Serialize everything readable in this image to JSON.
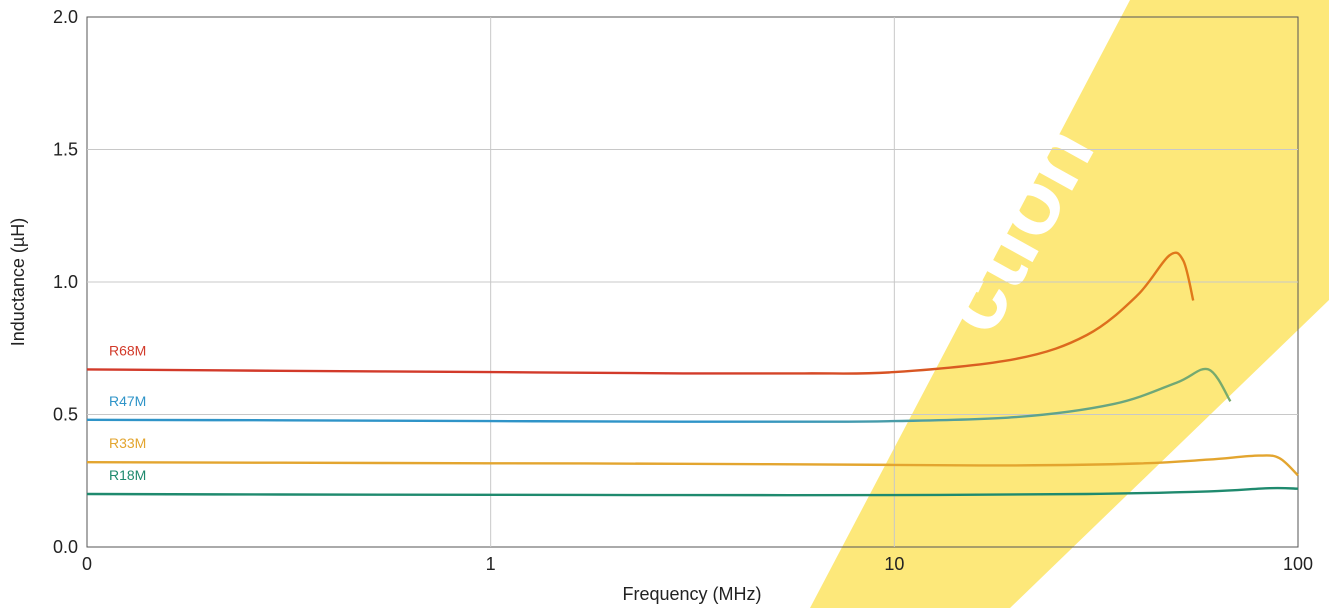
{
  "chart_data": {
    "type": "line",
    "xlabel": "Frequency (MHz)",
    "ylabel": "Inductance (µH)",
    "x_scale": "log",
    "xlim": [
      0.1,
      100
    ],
    "ylim": [
      0,
      2.0
    ],
    "x_ticks": [
      {
        "value": 0.1,
        "label": "0"
      },
      {
        "value": 1,
        "label": "1"
      },
      {
        "value": 10,
        "label": "10"
      },
      {
        "value": 100,
        "label": "100"
      }
    ],
    "y_ticks": [
      {
        "value": 0,
        "label": "0.0"
      },
      {
        "value": 0.5,
        "label": "0.5"
      },
      {
        "value": 1.0,
        "label": "1.0"
      },
      {
        "value": 1.5,
        "label": "1.5"
      },
      {
        "value": 2.0,
        "label": "2.0"
      }
    ],
    "grid": true,
    "legend": "inline labels near left end of each curve",
    "series": [
      {
        "name": "R68M",
        "color": "#d23a2a",
        "end_color": "#e07a1a",
        "x": [
          0.1,
          0.3,
          1,
          3,
          6,
          10,
          20,
          30,
          40,
          48,
          52,
          55
        ],
        "y": [
          0.67,
          0.665,
          0.66,
          0.655,
          0.655,
          0.66,
          0.71,
          0.8,
          0.95,
          1.1,
          1.08,
          0.93
        ]
      },
      {
        "name": "R47M",
        "color": "#2f94c8",
        "end_color": "#7aab6a",
        "x": [
          0.1,
          0.3,
          1,
          3,
          6,
          10,
          20,
          35,
          50,
          60,
          68
        ],
        "y": [
          0.48,
          0.478,
          0.475,
          0.473,
          0.473,
          0.475,
          0.49,
          0.54,
          0.62,
          0.67,
          0.55
        ]
      },
      {
        "name": "R33M",
        "color": "#e3a52f",
        "end_color": "#e3a52f",
        "x": [
          0.1,
          0.3,
          1,
          3,
          10,
          20,
          40,
          60,
          80,
          90,
          100
        ],
        "y": [
          0.32,
          0.318,
          0.316,
          0.314,
          0.31,
          0.308,
          0.315,
          0.33,
          0.345,
          0.335,
          0.27
        ]
      },
      {
        "name": "R18M",
        "color": "#1f8a6e",
        "end_color": "#1f8a6e",
        "x": [
          0.1,
          0.3,
          1,
          3,
          10,
          30,
          60,
          85,
          100
        ],
        "y": [
          0.2,
          0.198,
          0.197,
          0.196,
          0.196,
          0.2,
          0.21,
          0.222,
          0.22
        ]
      }
    ],
    "watermark": {
      "color": "#fde87a"
    }
  }
}
